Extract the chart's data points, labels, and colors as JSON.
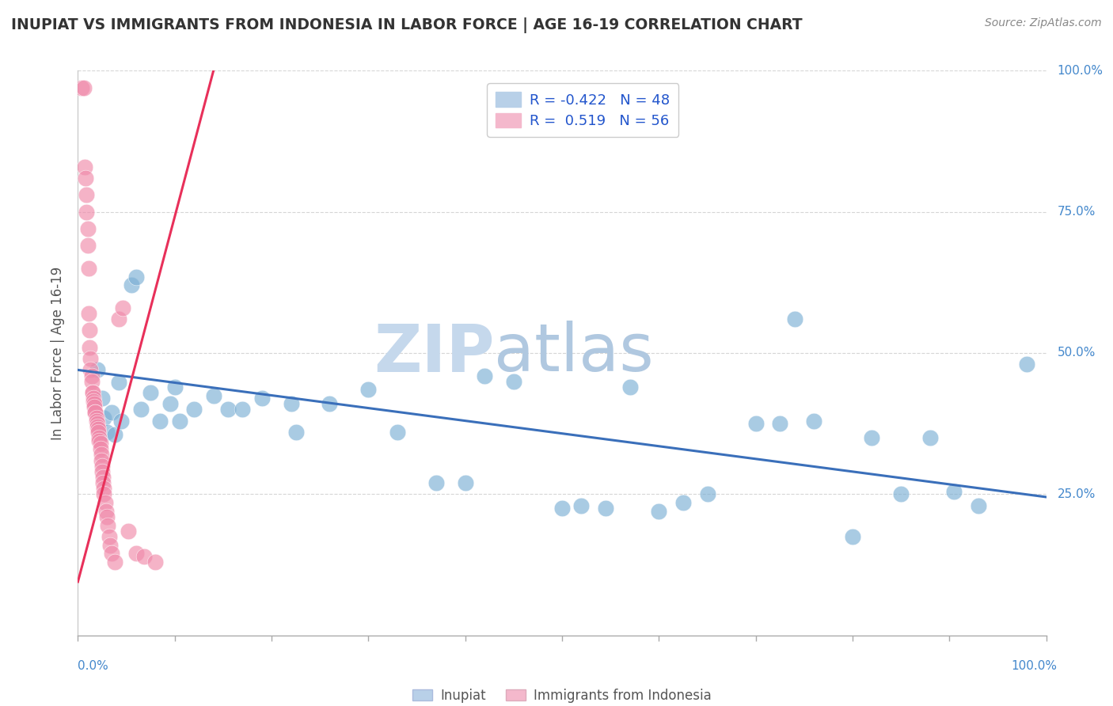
{
  "title": "INUPIAT VS IMMIGRANTS FROM INDONESIA IN LABOR FORCE | AGE 16-19 CORRELATION CHART",
  "source": "Source: ZipAtlas.com",
  "ylabel": "In Labor Force | Age 16-19",
  "watermark_part1": "ZIP",
  "watermark_part2": "atlas",
  "blue_R": -0.422,
  "blue_N": 48,
  "pink_R": 0.519,
  "pink_N": 56,
  "xmin": 0.0,
  "xmax": 1.0,
  "ymin": 0.0,
  "ymax": 1.0,
  "scatter_blue": [
    [
      0.02,
      0.47
    ],
    [
      0.025,
      0.42
    ],
    [
      0.027,
      0.385
    ],
    [
      0.03,
      0.36
    ],
    [
      0.035,
      0.395
    ],
    [
      0.038,
      0.355
    ],
    [
      0.042,
      0.448
    ],
    [
      0.045,
      0.38
    ],
    [
      0.055,
      0.62
    ],
    [
      0.06,
      0.635
    ],
    [
      0.065,
      0.4
    ],
    [
      0.075,
      0.43
    ],
    [
      0.085,
      0.38
    ],
    [
      0.095,
      0.41
    ],
    [
      0.1,
      0.44
    ],
    [
      0.105,
      0.38
    ],
    [
      0.12,
      0.4
    ],
    [
      0.14,
      0.425
    ],
    [
      0.155,
      0.4
    ],
    [
      0.17,
      0.4
    ],
    [
      0.19,
      0.42
    ],
    [
      0.22,
      0.41
    ],
    [
      0.225,
      0.36
    ],
    [
      0.26,
      0.41
    ],
    [
      0.3,
      0.435
    ],
    [
      0.33,
      0.36
    ],
    [
      0.37,
      0.27
    ],
    [
      0.4,
      0.27
    ],
    [
      0.42,
      0.46
    ],
    [
      0.45,
      0.45
    ],
    [
      0.5,
      0.225
    ],
    [
      0.52,
      0.23
    ],
    [
      0.545,
      0.225
    ],
    [
      0.57,
      0.44
    ],
    [
      0.6,
      0.22
    ],
    [
      0.625,
      0.235
    ],
    [
      0.65,
      0.25
    ],
    [
      0.7,
      0.375
    ],
    [
      0.725,
      0.375
    ],
    [
      0.74,
      0.56
    ],
    [
      0.76,
      0.38
    ],
    [
      0.8,
      0.175
    ],
    [
      0.82,
      0.35
    ],
    [
      0.85,
      0.25
    ],
    [
      0.88,
      0.35
    ],
    [
      0.905,
      0.255
    ],
    [
      0.93,
      0.23
    ],
    [
      0.98,
      0.48
    ]
  ],
  "scatter_pink": [
    [
      0.004,
      0.97
    ],
    [
      0.006,
      0.97
    ],
    [
      0.007,
      0.83
    ],
    [
      0.008,
      0.81
    ],
    [
      0.009,
      0.78
    ],
    [
      0.009,
      0.75
    ],
    [
      0.01,
      0.72
    ],
    [
      0.01,
      0.69
    ],
    [
      0.011,
      0.65
    ],
    [
      0.011,
      0.57
    ],
    [
      0.012,
      0.54
    ],
    [
      0.012,
      0.51
    ],
    [
      0.013,
      0.49
    ],
    [
      0.013,
      0.47
    ],
    [
      0.014,
      0.46
    ],
    [
      0.014,
      0.45
    ],
    [
      0.015,
      0.43
    ],
    [
      0.015,
      0.43
    ],
    [
      0.016,
      0.42
    ],
    [
      0.016,
      0.415
    ],
    [
      0.017,
      0.41
    ],
    [
      0.017,
      0.405
    ],
    [
      0.018,
      0.395
    ],
    [
      0.018,
      0.395
    ],
    [
      0.019,
      0.385
    ],
    [
      0.019,
      0.38
    ],
    [
      0.02,
      0.375
    ],
    [
      0.02,
      0.37
    ],
    [
      0.021,
      0.365
    ],
    [
      0.021,
      0.36
    ],
    [
      0.022,
      0.35
    ],
    [
      0.022,
      0.345
    ],
    [
      0.023,
      0.34
    ],
    [
      0.023,
      0.33
    ],
    [
      0.024,
      0.32
    ],
    [
      0.024,
      0.31
    ],
    [
      0.025,
      0.3
    ],
    [
      0.025,
      0.29
    ],
    [
      0.026,
      0.28
    ],
    [
      0.026,
      0.27
    ],
    [
      0.027,
      0.26
    ],
    [
      0.027,
      0.25
    ],
    [
      0.028,
      0.235
    ],
    [
      0.029,
      0.22
    ],
    [
      0.03,
      0.21
    ],
    [
      0.031,
      0.195
    ],
    [
      0.032,
      0.175
    ],
    [
      0.033,
      0.16
    ],
    [
      0.035,
      0.145
    ],
    [
      0.038,
      0.13
    ],
    [
      0.042,
      0.56
    ],
    [
      0.046,
      0.58
    ],
    [
      0.052,
      0.185
    ],
    [
      0.06,
      0.145
    ],
    [
      0.068,
      0.14
    ],
    [
      0.08,
      0.13
    ]
  ],
  "blue_line_x": [
    0.0,
    1.0
  ],
  "blue_line_y": [
    0.47,
    0.245
  ],
  "pink_line_x": [
    0.0,
    0.14
  ],
  "pink_line_y": [
    0.095,
    1.0
  ],
  "background_color": "#ffffff",
  "scatter_blue_color": "#7bafd4",
  "scatter_pink_color": "#f08aaa",
  "line_blue_color": "#3a6fba",
  "line_pink_color": "#e8305a",
  "grid_color": "#cccccc",
  "title_color": "#333333",
  "watermark_color_zip": "#c5d8ec",
  "watermark_color_atlas": "#b0c8e0",
  "axis_label_color": "#555555",
  "legend_blue_fill": "#b8d0e8",
  "legend_pink_fill": "#f4b8cc",
  "legend_text_color": "#2255cc",
  "tick_label_color": "#4488cc"
}
